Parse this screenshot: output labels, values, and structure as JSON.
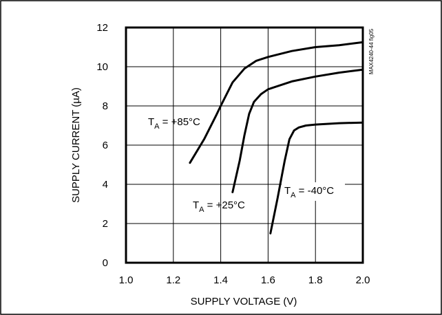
{
  "chart_data": {
    "type": "line",
    "figure_id": "MAX4240-44 fig05",
    "xlabel": "SUPPLY VOLTAGE (V)",
    "ylabel": "SUPPLY CURRENT (µA)",
    "xlim": [
      1.0,
      2.0
    ],
    "ylim": [
      0,
      12
    ],
    "x_ticks": [
      "1.0",
      "1.2",
      "1.4",
      "1.6",
      "1.8",
      "2.0"
    ],
    "y_ticks": [
      "0",
      "2",
      "4",
      "6",
      "8",
      "10",
      "12"
    ],
    "grid": true,
    "series": [
      {
        "name": "TA = +85°C",
        "label": {
          "pre": "T",
          "sub": "A",
          "post": " = +85°C"
        },
        "points": [
          [
            1.27,
            5.1
          ],
          [
            1.33,
            6.3
          ],
          [
            1.38,
            7.5
          ],
          [
            1.4,
            8.0
          ],
          [
            1.45,
            9.2
          ],
          [
            1.5,
            9.9
          ],
          [
            1.55,
            10.3
          ],
          [
            1.6,
            10.5
          ],
          [
            1.7,
            10.8
          ],
          [
            1.8,
            11.0
          ],
          [
            1.9,
            11.1
          ],
          [
            2.0,
            11.25
          ]
        ]
      },
      {
        "name": "TA = +25°C",
        "label": {
          "pre": "T",
          "sub": "A",
          "post": " = +25°C"
        },
        "points": [
          [
            1.45,
            3.6
          ],
          [
            1.48,
            5.2
          ],
          [
            1.5,
            6.5
          ],
          [
            1.52,
            7.6
          ],
          [
            1.54,
            8.2
          ],
          [
            1.57,
            8.6
          ],
          [
            1.6,
            8.85
          ],
          [
            1.7,
            9.25
          ],
          [
            1.8,
            9.5
          ],
          [
            1.9,
            9.7
          ],
          [
            2.0,
            9.85
          ]
        ]
      },
      {
        "name": "TA = -40°C",
        "label": {
          "pre": "T",
          "sub": "A",
          "post": " = -40°C"
        },
        "points": [
          [
            1.61,
            1.5
          ],
          [
            1.64,
            3.3
          ],
          [
            1.67,
            5.2
          ],
          [
            1.69,
            6.3
          ],
          [
            1.71,
            6.75
          ],
          [
            1.73,
            6.9
          ],
          [
            1.76,
            7.0
          ],
          [
            1.8,
            7.05
          ],
          [
            1.9,
            7.12
          ],
          [
            2.0,
            7.15
          ]
        ]
      }
    ]
  }
}
